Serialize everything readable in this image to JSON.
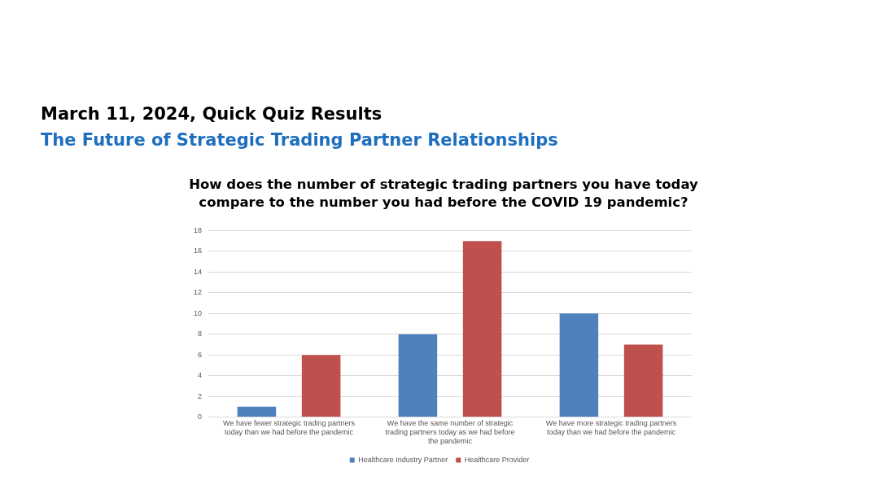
{
  "chart_data": {
    "type": "bar",
    "title": "March 11, 2024, Quick Quiz Results",
    "subtitle": "The Future of Strategic Trading Partner Relationships",
    "annotations": [
      "How does the number of strategic trading partners you have today compare to the number you had before the COVID 19 pandemic?"
    ],
    "categories": [
      "We have fewer strategic trading partners today than we had before the pandemic",
      "We have the same number of strategic trading partners today as we had before the pandemic",
      "We have more strategic trading partners today than we had before the pandemic"
    ],
    "series": [
      {
        "name": "Healthcare Industry Partner",
        "color": "#4f81bd",
        "values": [
          1,
          8,
          10
        ]
      },
      {
        "name": "Healthcare Provider",
        "color": "#c0504d",
        "values": [
          6,
          17,
          7
        ]
      }
    ],
    "ylim": [
      0,
      18
    ],
    "yticks": [
      0,
      2,
      4,
      6,
      8,
      10,
      12,
      14,
      16,
      18
    ],
    "grid": "y",
    "legend": "bottom"
  }
}
